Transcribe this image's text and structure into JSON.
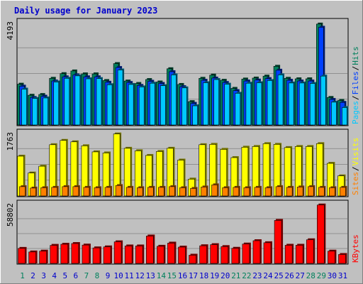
{
  "chart_data": [
    {
      "type": "bar",
      "title": "Daily usage for January 2023",
      "panel": "hits-files-pages",
      "categories": [
        "1",
        "2",
        "3",
        "4",
        "5",
        "6",
        "7",
        "8",
        "9",
        "10",
        "11",
        "12",
        "13",
        "14",
        "15",
        "16",
        "17",
        "18",
        "19",
        "20",
        "21",
        "22",
        "23",
        "24",
        "25",
        "26",
        "27",
        "28",
        "29",
        "30",
        "31"
      ],
      "ymax_label": "4193",
      "ylim": [
        0,
        4193
      ],
      "grid": true,
      "legend": {
        "placement": "right",
        "labels": [
          "Pages",
          "/",
          "Files",
          "/",
          "Hits"
        ]
      },
      "series": [
        {
          "name": "Hits",
          "values": [
            1660,
            1210,
            1240,
            1900,
            2090,
            2200,
            2080,
            2080,
            1810,
            2500,
            1790,
            1690,
            1850,
            1750,
            2290,
            1650,
            950,
            1900,
            2030,
            1820,
            1490,
            1870,
            1910,
            1990,
            2390,
            1900,
            1880,
            1880,
            4110,
            1120,
            1000
          ]
        },
        {
          "name": "Files",
          "values": [
            1580,
            1120,
            1170,
            1790,
            1960,
            2040,
            1960,
            1960,
            1740,
            2340,
            1730,
            1610,
            1780,
            1690,
            2170,
            1560,
            880,
            1820,
            1910,
            1730,
            1400,
            1790,
            1830,
            1890,
            2230,
            1820,
            1790,
            1790,
            3980,
            1040,
            920
          ]
        },
        {
          "name": "Pages",
          "values": [
            1460,
            1080,
            1100,
            1750,
            1900,
            2000,
            1880,
            1890,
            1640,
            2240,
            1650,
            1550,
            1700,
            1600,
            2040,
            1510,
            780,
            1720,
            1850,
            1660,
            1290,
            1700,
            1720,
            1810,
            2040,
            1710,
            1710,
            1690,
            1990,
            930,
            710
          ]
        }
      ]
    },
    {
      "type": "bar",
      "panel": "visits-sites",
      "categories": [
        "1",
        "2",
        "3",
        "4",
        "5",
        "6",
        "7",
        "8",
        "9",
        "10",
        "11",
        "12",
        "13",
        "14",
        "15",
        "16",
        "17",
        "18",
        "19",
        "20",
        "21",
        "22",
        "23",
        "24",
        "25",
        "26",
        "27",
        "28",
        "29",
        "30",
        "31"
      ],
      "ymax_label": "1763",
      "ylim": [
        0,
        1763
      ],
      "grid": true,
      "legend": {
        "placement": "right",
        "labels": [
          "Sites",
          "/",
          "Visits"
        ]
      },
      "series": [
        {
          "name": "Visits",
          "values": [
            1110,
            640,
            830,
            1430,
            1550,
            1510,
            1400,
            1230,
            1200,
            1730,
            1330,
            1260,
            1130,
            1240,
            1330,
            1000,
            470,
            1430,
            1440,
            1300,
            1070,
            1360,
            1380,
            1460,
            1440,
            1350,
            1380,
            1380,
            1460,
            910,
            560
          ]
        },
        {
          "name": "Sites",
          "values": [
            260,
            220,
            230,
            240,
            260,
            260,
            240,
            230,
            240,
            290,
            240,
            230,
            240,
            240,
            260,
            230,
            210,
            250,
            310,
            230,
            240,
            230,
            240,
            230,
            260,
            240,
            250,
            260,
            240,
            230,
            240
          ]
        }
      ]
    },
    {
      "type": "bar",
      "panel": "kbytes",
      "categories": [
        "1",
        "2",
        "3",
        "4",
        "5",
        "6",
        "7",
        "8",
        "9",
        "10",
        "11",
        "12",
        "13",
        "14",
        "15",
        "16",
        "17",
        "18",
        "19",
        "20",
        "21",
        "22",
        "23",
        "24",
        "25",
        "26",
        "27",
        "28",
        "29",
        "30",
        "31"
      ],
      "ymax_label": "58802",
      "ylim": [
        0,
        58802
      ],
      "grid": true,
      "legend": {
        "placement": "right",
        "labels": [
          "KBytes"
        ]
      },
      "series": [
        {
          "name": "KBytes",
          "values": [
            14800,
            11300,
            12100,
            17800,
            18900,
            19600,
            18100,
            15300,
            16300,
            21300,
            17200,
            17200,
            27000,
            16900,
            20000,
            16100,
            8100,
            17400,
            18500,
            16600,
            14900,
            19100,
            22400,
            20400,
            42400,
            17900,
            17900,
            23300,
            57600,
            12100,
            8800
          ]
        }
      ]
    }
  ],
  "colors": {
    "background": "#c0c0c0",
    "title": "#0000cc",
    "hits": "#00805c",
    "files": "#0040ff",
    "pages": "#00c8ff",
    "visits": "#ffff00",
    "sites": "#ff8000",
    "kbytes": "#ff0000",
    "weekend_label": "#00805c",
    "weekday_label": "#0000cc"
  },
  "weekend_days": [
    "1",
    "7",
    "8",
    "14",
    "15",
    "21",
    "22",
    "28",
    "29"
  ]
}
